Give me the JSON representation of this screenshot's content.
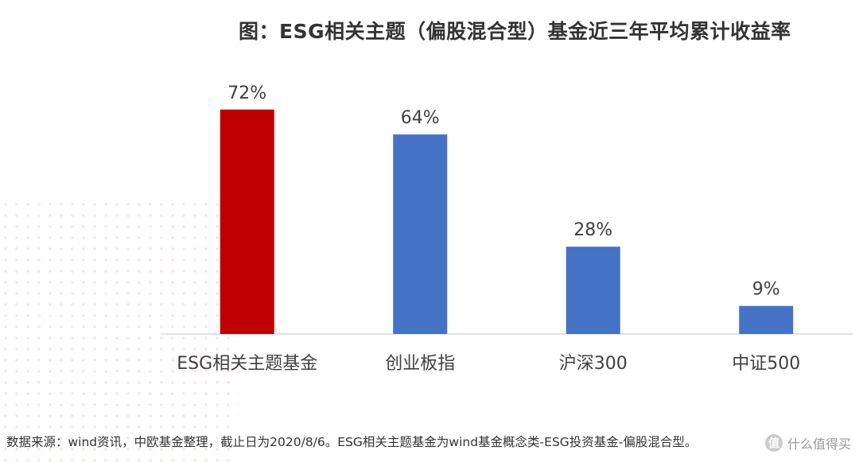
{
  "title": "图：ESG相关主题（偏股混合型）基金近三年平均累计收益率",
  "source_note": "数据来源：wind资讯，中欧基金整理，截止日为2020/8/6。ESG相关主题基金为wind基金概念类-ESG投资基金-偏股混合型。",
  "watermark": {
    "icon_char": "值",
    "text": "什么值得买"
  },
  "colors": {
    "highlight": "#c00000",
    "default": "#4472c4",
    "axis": "#d9d9d9",
    "text": "#404040"
  },
  "chart_data": {
    "type": "bar",
    "title": "图：ESG相关主题（偏股混合型）基金近三年平均累计收益率",
    "xlabel": "",
    "ylabel": "",
    "categories": [
      "ESG相关主题基金",
      "创业板指",
      "沪深300",
      "中证500"
    ],
    "values": [
      72,
      64,
      28,
      9
    ],
    "value_labels": [
      "72%",
      "64%",
      "28%",
      "9%"
    ],
    "unit": "%",
    "ylim": [
      0,
      80
    ],
    "grid": false,
    "legend": "none",
    "highlight_index": 0
  }
}
